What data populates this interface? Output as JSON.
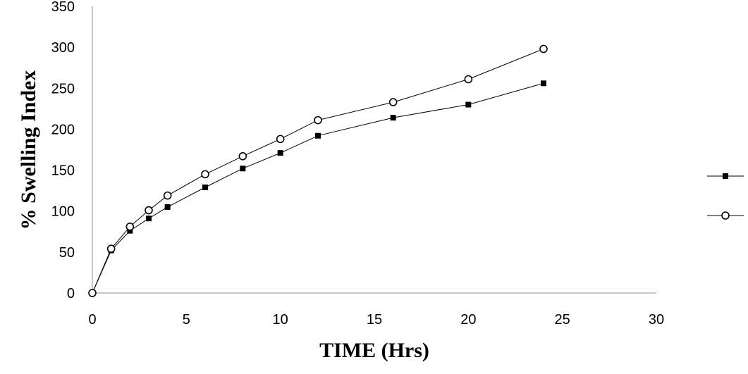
{
  "chart_data": {
    "type": "scatter",
    "xlabel": "TIME (Hrs)",
    "ylabel": "% Swelling Index",
    "xlim": [
      0,
      30
    ],
    "ylim": [
      0,
      350
    ],
    "xticks": [
      "0",
      "5",
      "10",
      "15",
      "20",
      "25",
      "30"
    ],
    "yticks": [
      "0",
      "50",
      "100",
      "150",
      "200",
      "250",
      "300",
      "350"
    ],
    "grid": false,
    "legend_position": "right",
    "series": [
      {
        "marker": "filled-square",
        "color": "#000000",
        "x": [
          0,
          1,
          2,
          3,
          4,
          6,
          8,
          10,
          12,
          16,
          20,
          24
        ],
        "y": [
          0,
          52,
          76,
          91,
          105,
          129,
          152,
          171,
          192,
          214,
          230,
          256
        ]
      },
      {
        "marker": "open-circle",
        "color": "#000000",
        "x": [
          0,
          1,
          2,
          3,
          4,
          6,
          8,
          10,
          12,
          16,
          20,
          24
        ],
        "y": [
          0,
          54,
          81,
          101,
          119,
          145,
          167,
          188,
          211,
          233,
          261,
          298
        ]
      }
    ]
  }
}
